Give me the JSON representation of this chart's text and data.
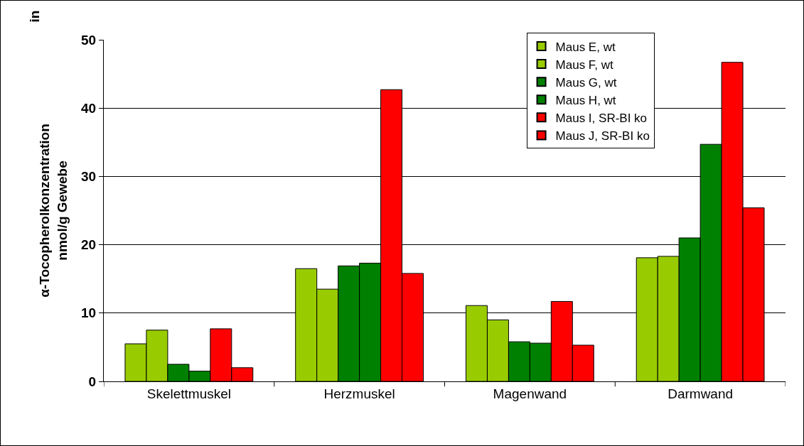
{
  "chart_data": {
    "type": "bar",
    "ylabel": "α-Tocopherolkonzentration\nnmol/g Gewebe",
    "annotations": [
      "in"
    ],
    "categories": [
      "Skelettmuskel",
      "Herzmuskel",
      "Magenwand",
      "Darmwand"
    ],
    "series": [
      {
        "name": "Maus E, wt",
        "color": "#99cc00",
        "values": [
          5.5,
          16.5,
          11.1,
          18.1
        ]
      },
      {
        "name": "Maus F, wt",
        "color": "#99cc00",
        "values": [
          7.5,
          13.5,
          9.0,
          18.3
        ]
      },
      {
        "name": "Maus G, wt",
        "color": "#008000",
        "values": [
          2.5,
          16.9,
          5.8,
          21.0
        ]
      },
      {
        "name": "Maus H, wt",
        "color": "#008000",
        "values": [
          1.5,
          17.3,
          5.6,
          34.7
        ]
      },
      {
        "name": "Maus I, SR-BI ko",
        "color": "#ff0000",
        "values": [
          7.7,
          42.7,
          11.7,
          46.7
        ]
      },
      {
        "name": "Maus J, SR-BI ko",
        "color": "#ff0000",
        "values": [
          2.0,
          15.8,
          5.3,
          25.4
        ]
      }
    ],
    "ylim": [
      0,
      50
    ],
    "yticks": [
      0,
      10,
      20,
      30,
      40,
      50
    ],
    "grid": "y",
    "legend": "top right"
  }
}
